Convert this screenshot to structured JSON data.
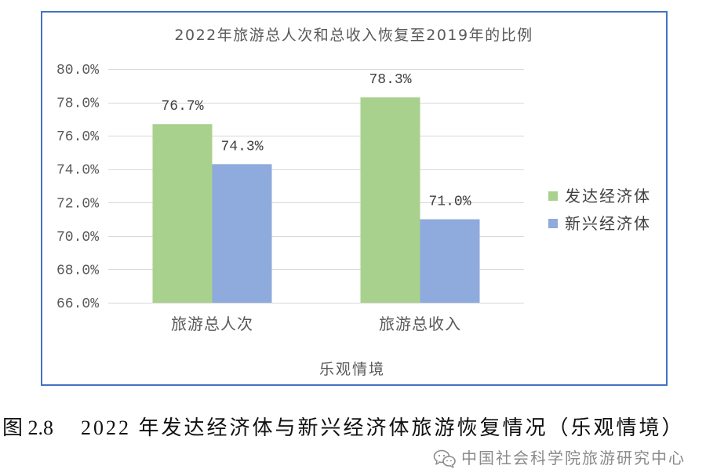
{
  "chart_data": {
    "type": "bar",
    "title": "2022年旅游总人次和总收入恢复至2019年的比例",
    "categories": [
      "旅游总人次",
      "旅游总收入"
    ],
    "series": [
      {
        "name": "发达经济体",
        "values": [
          76.7,
          78.3
        ],
        "labels": [
          "76.7%",
          "78.3%"
        ],
        "color": "#A9D18E"
      },
      {
        "name": "新兴经济体",
        "values": [
          74.3,
          71.0
        ],
        "labels": [
          "74.3%",
          "71.0%"
        ],
        "color": "#8FAADC"
      }
    ],
    "xlabel": "乐观情境",
    "ylim": [
      66,
      80
    ],
    "yticks": [
      66,
      68,
      70,
      72,
      74,
      76,
      78,
      80
    ],
    "ytick_labels": [
      "66.0%",
      "68.0%",
      "70.0%",
      "72.0%",
      "74.0%",
      "76.0%",
      "78.0%",
      "80.0%"
    ],
    "grid": true,
    "legend_position": "right",
    "frame_color": "#4472C4",
    "grid_color": "#D9D9D9"
  },
  "caption": {
    "figure_number": "图 2.8",
    "text": "2022 年发达经济体与新兴经济体旅游恢复情况（乐观情境）"
  },
  "watermark": {
    "icon": "wechat-icon",
    "text": "中国社会科学院旅游研究中心"
  }
}
